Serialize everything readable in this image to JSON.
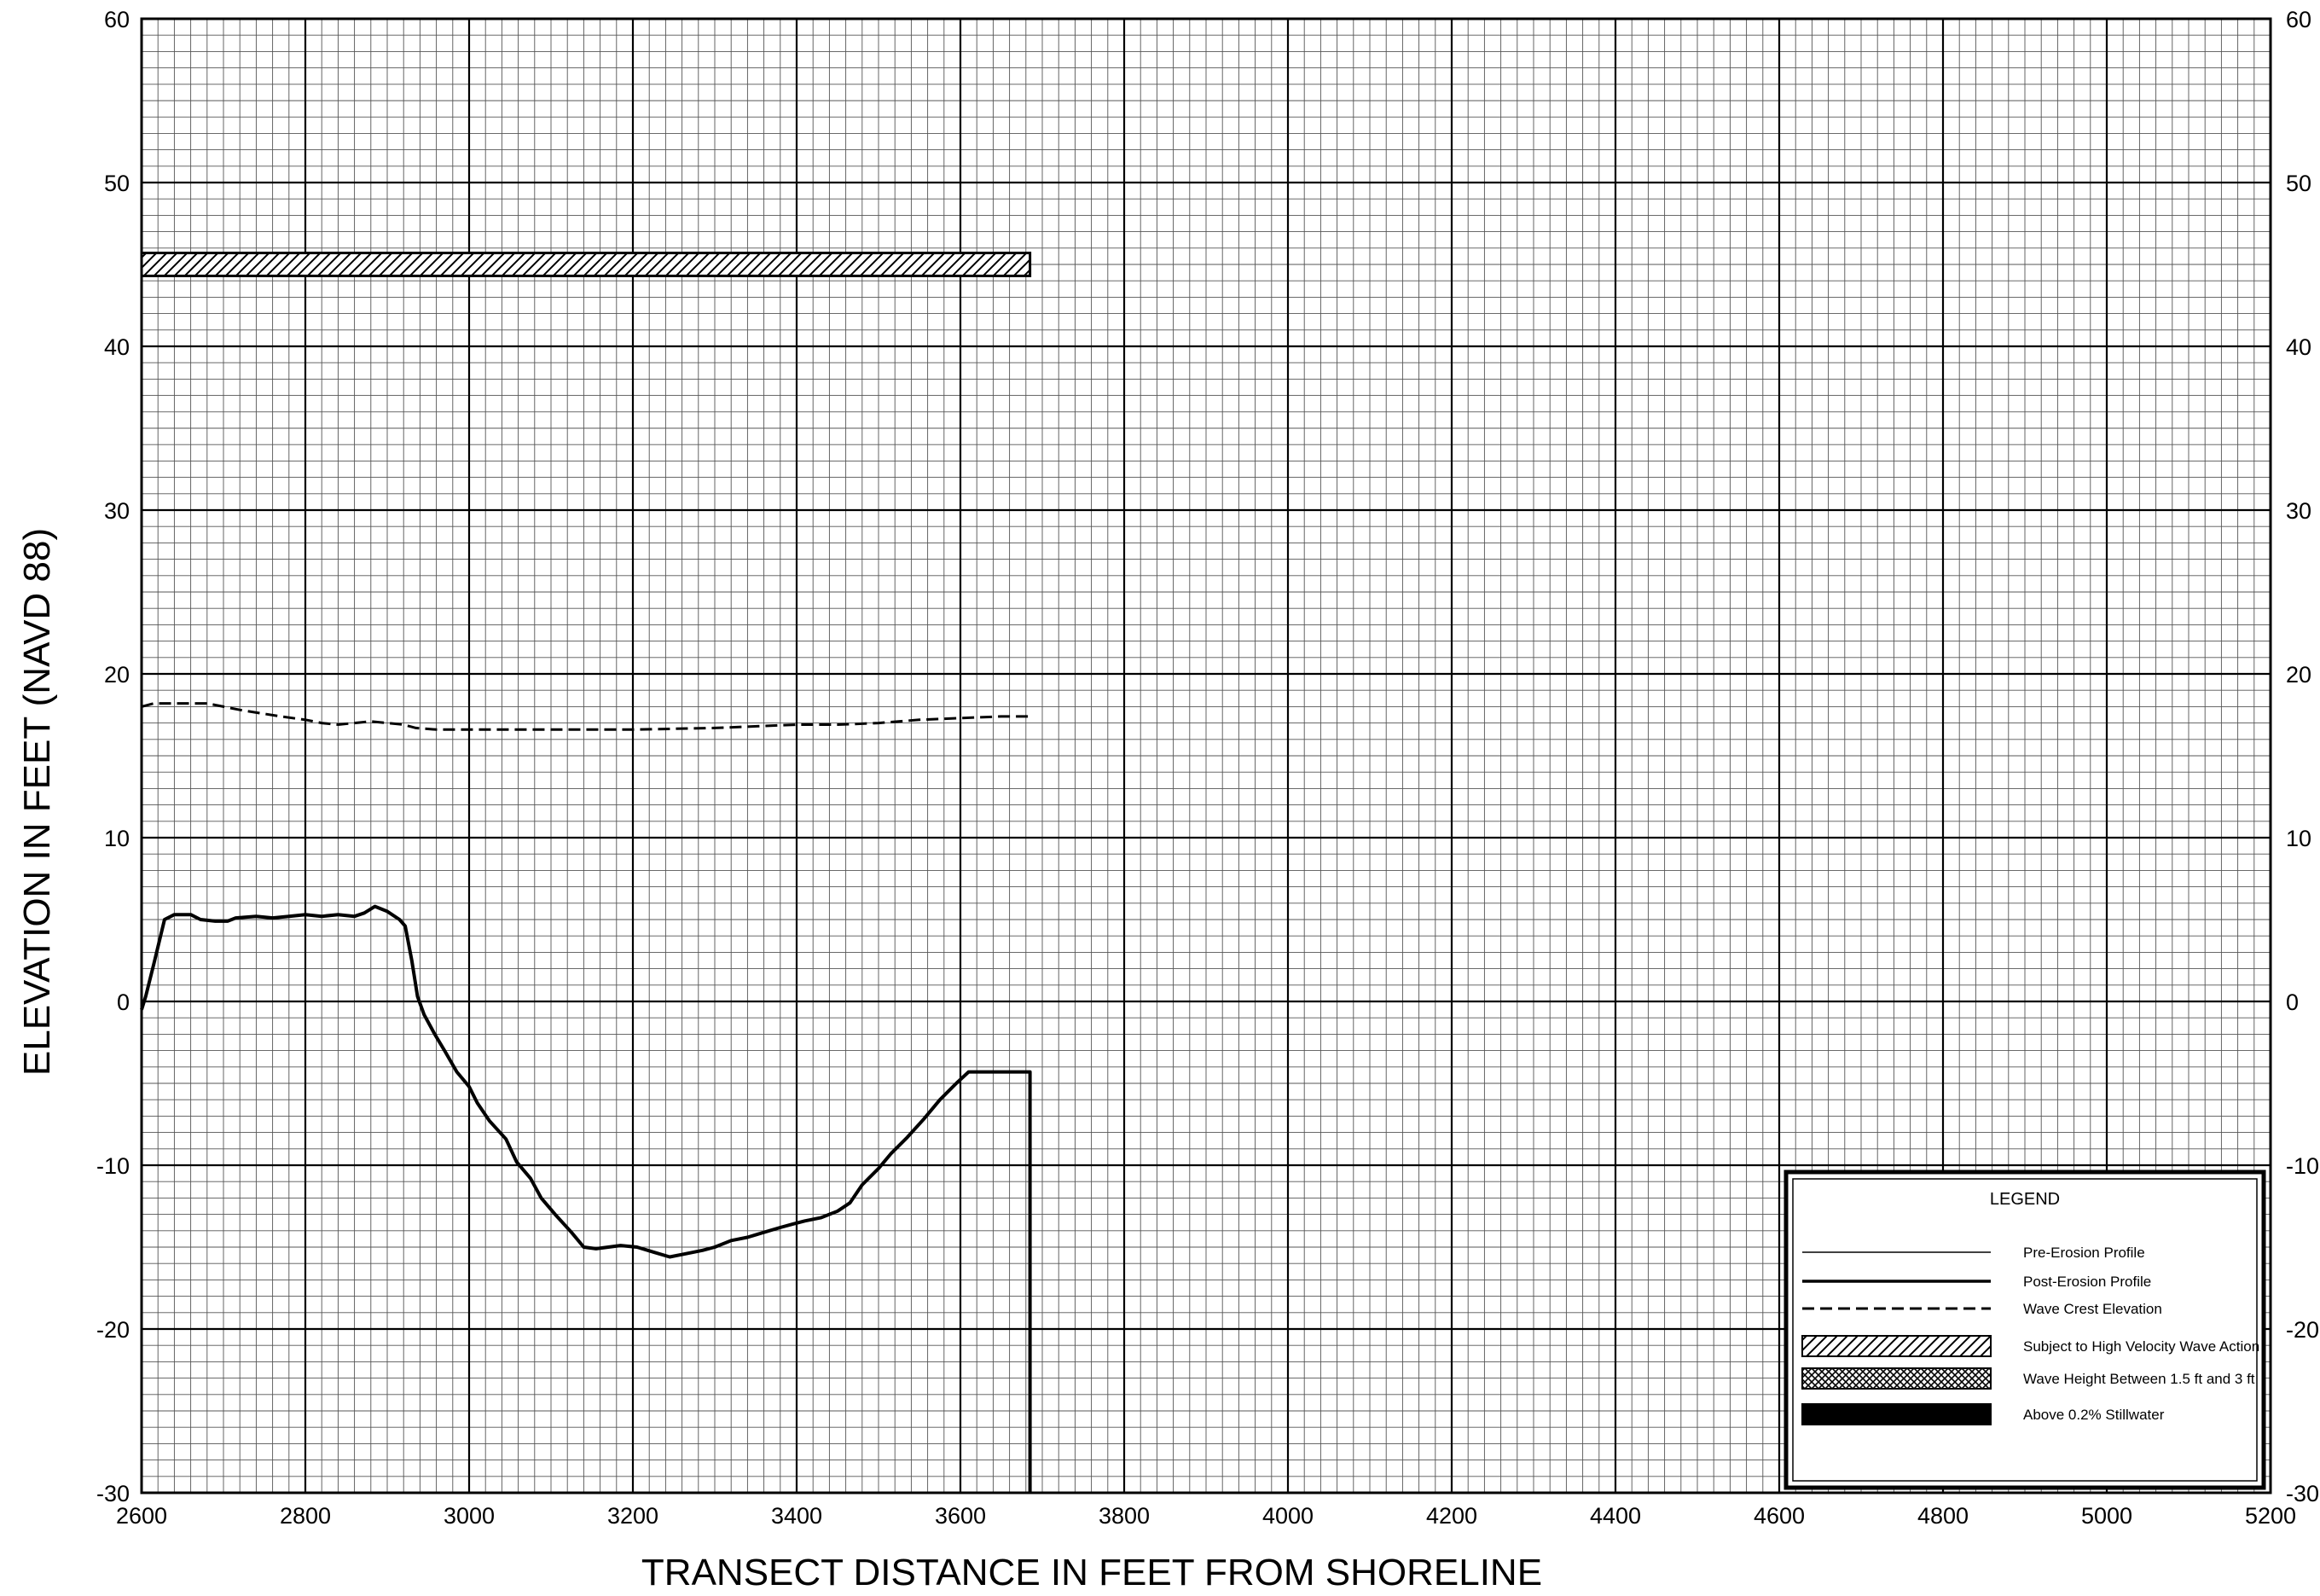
{
  "chart_data": {
    "type": "line",
    "title": "",
    "xlabel": "TRANSECT DISTANCE IN FEET FROM SHORELINE",
    "ylabel": "ELEVATION IN FEET (NAVD 88)",
    "xlim": [
      2600,
      5200
    ],
    "ylim": [
      -30,
      60
    ],
    "grid": true,
    "x_ticks": [
      "2600",
      "2800",
      "3000",
      "3200",
      "3400",
      "3600",
      "3800",
      "4000",
      "4200",
      "4400",
      "4600",
      "4800",
      "5000",
      "5200"
    ],
    "y_ticks": [
      "-30",
      "-20",
      "-10",
      "0",
      "10",
      "20",
      "30",
      "40",
      "50",
      "60"
    ],
    "series": [
      {
        "name": "Post-Erosion Profile",
        "style": "solid-thick",
        "points": [
          [
            2600,
            -0.5
          ],
          [
            2605,
            0.3
          ],
          [
            2615,
            2.3
          ],
          [
            2628,
            5.0
          ],
          [
            2640,
            5.3
          ],
          [
            2660,
            5.3
          ],
          [
            2672,
            5.0
          ],
          [
            2690,
            4.9
          ],
          [
            2705,
            4.9
          ],
          [
            2715,
            5.1
          ],
          [
            2740,
            5.2
          ],
          [
            2760,
            5.1
          ],
          [
            2780,
            5.2
          ],
          [
            2800,
            5.3
          ],
          [
            2820,
            5.2
          ],
          [
            2840,
            5.3
          ],
          [
            2860,
            5.2
          ],
          [
            2872,
            5.4
          ],
          [
            2885,
            5.8
          ],
          [
            2900,
            5.5
          ],
          [
            2915,
            5.0
          ],
          [
            2922,
            4.6
          ],
          [
            2930,
            2.5
          ],
          [
            2937,
            0.3
          ],
          [
            2945,
            -0.8
          ],
          [
            2958,
            -2.0
          ],
          [
            2970,
            -3.0
          ],
          [
            2985,
            -4.3
          ],
          [
            3000,
            -5.2
          ],
          [
            3010,
            -6.2
          ],
          [
            3025,
            -7.3
          ],
          [
            3045,
            -8.4
          ],
          [
            3058,
            -9.8
          ],
          [
            3075,
            -10.8
          ],
          [
            3088,
            -12.0
          ],
          [
            3105,
            -13.0
          ],
          [
            3125,
            -14.1
          ],
          [
            3140,
            -15.0
          ],
          [
            3155,
            -15.1
          ],
          [
            3170,
            -15.0
          ],
          [
            3185,
            -14.9
          ],
          [
            3205,
            -15.0
          ],
          [
            3225,
            -15.3
          ],
          [
            3245,
            -15.6
          ],
          [
            3265,
            -15.4
          ],
          [
            3285,
            -15.2
          ],
          [
            3300,
            -15.0
          ],
          [
            3320,
            -14.6
          ],
          [
            3340,
            -14.4
          ],
          [
            3360,
            -14.1
          ],
          [
            3380,
            -13.8
          ],
          [
            3395,
            -13.6
          ],
          [
            3410,
            -13.4
          ],
          [
            3430,
            -13.2
          ],
          [
            3450,
            -12.8
          ],
          [
            3465,
            -12.3
          ],
          [
            3480,
            -11.2
          ],
          [
            3500,
            -10.2
          ],
          [
            3515,
            -9.3
          ],
          [
            3535,
            -8.3
          ],
          [
            3555,
            -7.2
          ],
          [
            3575,
            -6.0
          ],
          [
            3595,
            -5.0
          ],
          [
            3610,
            -4.3
          ],
          [
            3630,
            -4.3
          ],
          [
            3685,
            -4.3
          ],
          [
            3685,
            -30
          ]
        ]
      },
      {
        "name": "Wave Crest Elevation",
        "style": "dashed",
        "points": [
          [
            2600,
            18.0
          ],
          [
            2615,
            18.2
          ],
          [
            2640,
            18.2
          ],
          [
            2660,
            18.2
          ],
          [
            2680,
            18.2
          ],
          [
            2700,
            18.0
          ],
          [
            2720,
            17.8
          ],
          [
            2745,
            17.6
          ],
          [
            2770,
            17.4
          ],
          [
            2800,
            17.2
          ],
          [
            2820,
            17.0
          ],
          [
            2840,
            16.9
          ],
          [
            2860,
            17.0
          ],
          [
            2880,
            17.1
          ],
          [
            2900,
            17.0
          ],
          [
            2920,
            16.9
          ],
          [
            2935,
            16.7
          ],
          [
            2960,
            16.6
          ],
          [
            3000,
            16.6
          ],
          [
            3050,
            16.6
          ],
          [
            3100,
            16.6
          ],
          [
            3150,
            16.6
          ],
          [
            3200,
            16.6
          ],
          [
            3300,
            16.7
          ],
          [
            3400,
            16.9
          ],
          [
            3450,
            16.9
          ],
          [
            3500,
            17.0
          ],
          [
            3550,
            17.2
          ],
          [
            3600,
            17.3
          ],
          [
            3650,
            17.4
          ],
          [
            3685,
            17.4
          ]
        ]
      }
    ],
    "zones": [
      {
        "name": "Subject to High Velocity Wave Action",
        "x": [
          2600,
          3685
        ],
        "y": [
          44.3,
          45.7
        ],
        "fill": "hatch"
      }
    ],
    "legend": {
      "title": "LEGEND",
      "position": "bottom-right",
      "items": [
        {
          "label": "Pre-Erosion Profile",
          "style": "thin-line"
        },
        {
          "label": "Post-Erosion Profile",
          "style": "thick-line"
        },
        {
          "label": "Wave Crest Elevation",
          "style": "dashed-line"
        },
        {
          "label": "Subject to High Velocity Wave Action",
          "style": "hatch"
        },
        {
          "label": "Wave Height Between 1.5 ft and 3 ft",
          "style": "crosshatch"
        },
        {
          "label": "Above 0.2% Stillwater",
          "style": "solid-fill"
        }
      ]
    }
  }
}
